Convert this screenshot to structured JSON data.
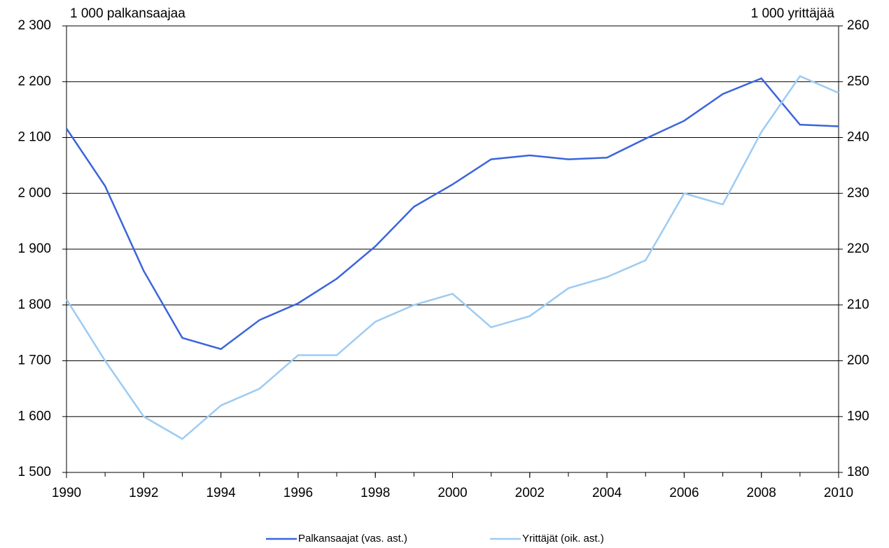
{
  "chart_data": {
    "type": "line",
    "y_label": "1 000 palkansaajaa",
    "y2_label": "1 000 yrittäjää",
    "x": [
      1990,
      1991,
      1992,
      1993,
      1994,
      1995,
      1996,
      1997,
      1998,
      1999,
      2000,
      2001,
      2002,
      2003,
      2004,
      2005,
      2006,
      2007,
      2008,
      2009,
      2010
    ],
    "series": [
      {
        "name": "Palkansaajat (vas. ast.)",
        "color": "#3b64dc",
        "values": [
          2116,
          2013,
          1861,
          1741,
          1721,
          1773,
          1803,
          1847,
          1905,
          1976,
          2016,
          2061,
          2068,
          2061,
          2064,
          2098,
          2130,
          2178,
          2206,
          2123,
          2120
        ]
      },
      {
        "name": "Yrittäjät (oik. ast.)",
        "color": "#9dcbf2",
        "axis": "y2",
        "values": [
          211,
          200,
          190,
          186,
          192,
          195,
          201,
          201,
          207,
          210,
          212,
          206,
          208,
          213,
          215,
          218,
          230,
          228,
          241,
          251,
          248
        ]
      }
    ],
    "xlim": [
      1990,
      2010
    ],
    "xticks": [
      1990,
      1992,
      1994,
      1996,
      1998,
      2000,
      2002,
      2004,
      2006,
      2008,
      2010
    ],
    "ylim": [
      1500,
      2300
    ],
    "yticks": [
      {
        "value": 1500,
        "label": "1 500"
      },
      {
        "value": 1600,
        "label": "1 600"
      },
      {
        "value": 1700,
        "label": "1 700"
      },
      {
        "value": 1800,
        "label": "1 800"
      },
      {
        "value": 1900,
        "label": "1 900"
      },
      {
        "value": 2000,
        "label": "2 000"
      },
      {
        "value": 2100,
        "label": "2 100"
      },
      {
        "value": 2200,
        "label": "2 200"
      },
      {
        "value": 2300,
        "label": "2 300"
      }
    ],
    "y2lim": [
      180,
      260
    ],
    "y2ticks": [
      180,
      190,
      200,
      210,
      220,
      230,
      240,
      250,
      260
    ],
    "grid": true,
    "legend": "bottom"
  }
}
